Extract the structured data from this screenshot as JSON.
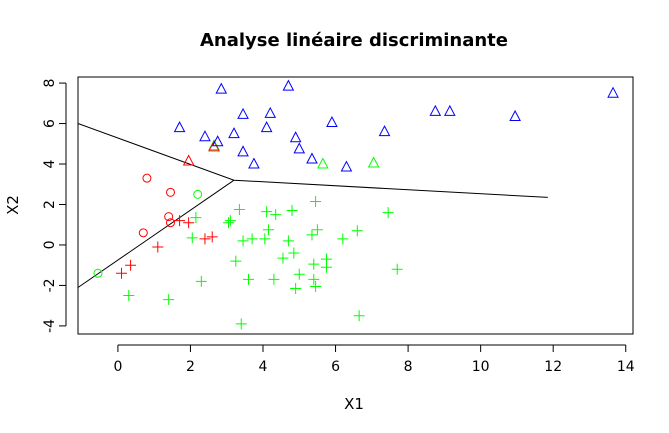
{
  "chart_data": {
    "type": "scatter",
    "title": "Analyse linéaire discriminante",
    "xlabel": "X1",
    "ylabel": "X2",
    "xlim": [
      -1.1,
      14.2
    ],
    "ylim": [
      -4.4,
      8.3
    ],
    "xticks": [
      0,
      2,
      4,
      6,
      8,
      10,
      12,
      14
    ],
    "yticks": [
      -4,
      -2,
      0,
      2,
      4,
      6,
      8
    ],
    "grid": false,
    "legend": "none",
    "series": [
      {
        "marker": "circle",
        "color": "#ff0000",
        "points": [
          [
            0.8,
            3.3
          ],
          [
            1.45,
            2.6
          ],
          [
            1.4,
            1.4
          ],
          [
            1.45,
            1.1
          ],
          [
            0.7,
            0.6
          ]
        ]
      },
      {
        "marker": "circle",
        "color": "#00ff00",
        "points": [
          [
            2.2,
            2.5
          ],
          [
            -0.55,
            -1.4
          ]
        ]
      },
      {
        "marker": "plus",
        "color": "#ff0000",
        "points": [
          [
            1.95,
            1.1
          ],
          [
            1.7,
            1.2
          ],
          [
            2.4,
            0.3
          ],
          [
            2.6,
            0.4
          ],
          [
            1.1,
            -0.1
          ],
          [
            0.35,
            -1.0
          ],
          [
            0.1,
            -1.4
          ]
        ]
      },
      {
        "marker": "plus",
        "color": "#00ff00",
        "points": [
          [
            2.15,
            1.35
          ],
          [
            2.05,
            0.35
          ],
          [
            2.3,
            -1.8
          ],
          [
            0.3,
            -2.5
          ],
          [
            1.4,
            -2.7
          ],
          [
            3.35,
            1.75
          ],
          [
            3.1,
            1.2
          ],
          [
            3.05,
            1.1
          ],
          [
            3.25,
            -0.8
          ],
          [
            3.45,
            0.2
          ],
          [
            3.7,
            0.3
          ],
          [
            3.6,
            -1.7
          ],
          [
            3.4,
            -3.9
          ],
          [
            4.1,
            1.65
          ],
          [
            4.05,
            0.3
          ],
          [
            4.15,
            0.75
          ],
          [
            4.35,
            1.5
          ],
          [
            4.8,
            1.7
          ],
          [
            4.3,
            -1.7
          ],
          [
            4.55,
            -0.65
          ],
          [
            4.7,
            0.2
          ],
          [
            4.85,
            -0.4
          ],
          [
            4.9,
            -2.15
          ],
          [
            5.0,
            -1.45
          ],
          [
            5.45,
            2.15
          ],
          [
            5.35,
            0.5
          ],
          [
            5.5,
            0.75
          ],
          [
            5.4,
            -0.95
          ],
          [
            5.4,
            -1.7
          ],
          [
            5.45,
            -2.05
          ],
          [
            5.75,
            -0.7
          ],
          [
            5.75,
            -1.1
          ],
          [
            6.2,
            0.3
          ],
          [
            6.6,
            0.7
          ],
          [
            6.65,
            -3.5
          ],
          [
            7.45,
            1.6
          ],
          [
            7.7,
            -1.2
          ]
        ]
      },
      {
        "marker": "triangle",
        "color": "#00ff00",
        "points": [
          [
            2.65,
            4.9
          ],
          [
            5.65,
            4.0
          ],
          [
            7.05,
            4.05
          ]
        ]
      },
      {
        "marker": "triangle",
        "color": "#ff0000",
        "points": [
          [
            1.95,
            4.15
          ],
          [
            2.65,
            4.85
          ]
        ]
      },
      {
        "marker": "triangle",
        "color": "#0000ff",
        "points": [
          [
            2.85,
            7.7
          ],
          [
            4.7,
            7.85
          ],
          [
            3.45,
            6.45
          ],
          [
            4.2,
            6.5
          ],
          [
            1.7,
            5.8
          ],
          [
            2.4,
            5.35
          ],
          [
            2.75,
            5.1
          ],
          [
            3.2,
            5.5
          ],
          [
            4.1,
            5.8
          ],
          [
            3.45,
            4.6
          ],
          [
            3.75,
            4.0
          ],
          [
            4.9,
            5.3
          ],
          [
            5.0,
            4.75
          ],
          [
            5.35,
            4.25
          ],
          [
            5.9,
            6.05
          ],
          [
            6.3,
            3.85
          ],
          [
            7.35,
            5.6
          ],
          [
            8.75,
            6.6
          ],
          [
            9.15,
            6.6
          ],
          [
            10.95,
            6.35
          ],
          [
            13.65,
            7.5
          ]
        ]
      }
    ],
    "boundaries": [
      [
        [
          -1.1,
          6.0
        ],
        [
          3.2,
          3.2
        ],
        [
          11.85,
          2.35
        ]
      ],
      [
        [
          -1.1,
          -2.1
        ],
        [
          3.2,
          3.2
        ]
      ]
    ]
  }
}
